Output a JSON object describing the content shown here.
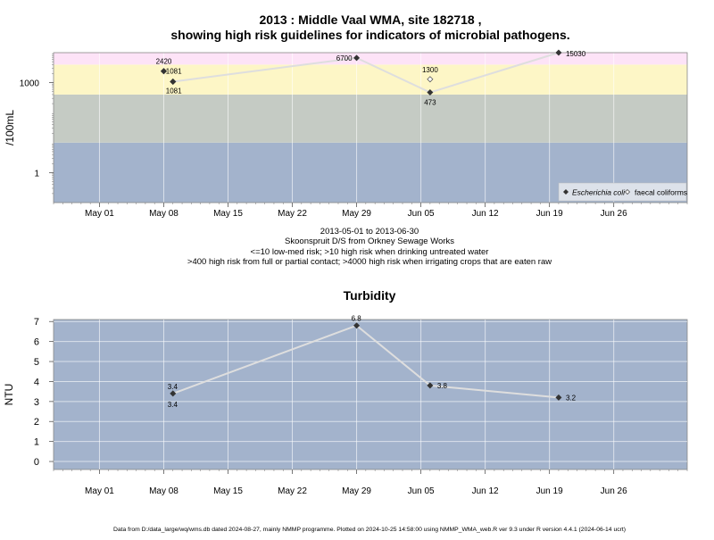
{
  "title_line1": "2013 : Middle Vaal WMA, site 182718 ,",
  "title_line2": "showing high risk guidelines for indicators of microbial pathogens.",
  "caption": {
    "date_range": "2013-05-01 to 2013-06-30",
    "site_name": "Skoonspruit D/S from Orkney Sewage Works",
    "risk_note_1": "<=10 low-med risk; >10 high risk when drinking untreated water",
    "risk_note_2": ">400 high risk from full or partial contact; >4000 high risk when irrigating crops that are eaten raw"
  },
  "footer": "Data from D:/data_large/wq/wms.db dated 2024-08-27, mainly NMMP programme. Plotted on 2024-10-25 14:58:00 using NMMP_WMA_web.R ver 9.3 under R version 4.4.1 (2024-06-14 ucrt)",
  "x_ticks": [
    "May 01",
    "May 08",
    "May 15",
    "May 22",
    "May 29",
    "Jun 05",
    "Jun 12",
    "Jun 19",
    "Jun 26"
  ],
  "colors": {
    "band_low": "#a3b3cc",
    "band_medium": "#c5cbc4",
    "band_high": "#fdf6c6",
    "band_very_high": "#fde3f7",
    "gridline": "#ffffff",
    "series_line": "#dedede",
    "marker": "#333333"
  },
  "chart_data": [
    {
      "type": "line",
      "ylabel": "/100mL",
      "y_scale": "log10",
      "y_ticks": [
        "1",
        "1000"
      ],
      "ylim": [
        0.1,
        10000
      ],
      "xlim": [
        "2013-04-26",
        "2013-07-04"
      ],
      "risk_bands": [
        {
          "from": 0.1,
          "to": 10,
          "color": "#a3b3cc"
        },
        {
          "from": 10,
          "to": 400,
          "color": "#c5cbc4"
        },
        {
          "from": 400,
          "to": 4000,
          "color": "#fdf6c6"
        },
        {
          "from": 4000,
          "to": 10000,
          "color": "#fde3f7"
        }
      ],
      "legend": {
        "position": "bottom-right",
        "entries": [
          "Escherichia coli",
          "faecal coliforms"
        ]
      },
      "series": [
        {
          "name": "Escherichia coli",
          "marker": "filled-diamond",
          "points": [
            {
              "date": "2013-05-09",
              "value": 1081
            },
            {
              "date": "2013-05-29",
              "value": 6700
            },
            {
              "date": "2013-06-06",
              "value": 473
            },
            {
              "date": "2013-06-20",
              "value": 15030
            }
          ]
        },
        {
          "name": "faecal coliforms",
          "marker": "open-diamond",
          "points": [
            {
              "date": "2013-05-08",
              "value": 2420,
              "label": "2420"
            },
            {
              "date": "2013-05-09",
              "value": 1081,
              "label": "1081"
            },
            {
              "date": "2013-06-06",
              "value": 1300,
              "label": "1300"
            }
          ]
        }
      ],
      "line_points": [
        {
          "date": "2013-05-09",
          "value": 1081
        },
        {
          "date": "2013-05-29",
          "value": 6700
        },
        {
          "date": "2013-06-06",
          "value": 473
        },
        {
          "date": "2013-06-20",
          "value": 15030
        }
      ],
      "data_labels": [
        {
          "date": "2013-05-09",
          "value": 1081,
          "text": "1081"
        },
        {
          "date": "2013-05-29",
          "value": 6700,
          "text": "6700"
        },
        {
          "date": "2013-06-06",
          "value": 473,
          "text": "473"
        },
        {
          "date": "2013-06-20",
          "value": 15030,
          "text": "15030"
        }
      ]
    },
    {
      "type": "line",
      "title": "Turbidity",
      "ylabel": "NTU",
      "ylim": [
        -0.4,
        7.1
      ],
      "y_ticks": [
        0,
        1,
        2,
        3,
        4,
        5,
        6,
        7
      ],
      "xlim": [
        "2013-04-26",
        "2013-07-04"
      ],
      "grid": true,
      "points": [
        {
          "date": "2013-05-09",
          "value": 3.4,
          "label_top": "3.4",
          "label_bottom": "3.4"
        },
        {
          "date": "2013-05-29",
          "value": 6.8,
          "label_top": "6.8"
        },
        {
          "date": "2013-06-06",
          "value": 3.8,
          "label_right": "3.8"
        },
        {
          "date": "2013-06-20",
          "value": 3.2,
          "label_right": "3.2"
        }
      ]
    }
  ]
}
